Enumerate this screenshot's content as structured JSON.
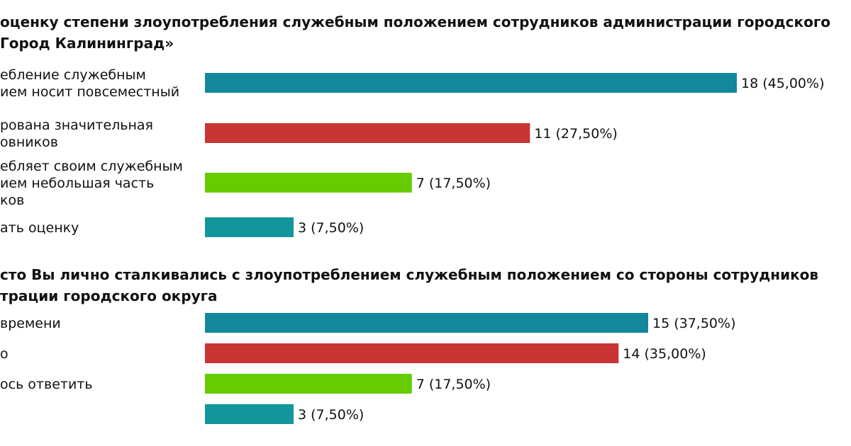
{
  "colors": [
    "#13879b",
    "#c93434",
    "#66cc00",
    "#13969b"
  ],
  "chart_data": [
    {
      "type": "bar",
      "orientation": "horizontal",
      "title_lines": [
        "оценку степени злоупотребления служебным положением сотрудников администрации городского",
        "Город Калининград»"
      ],
      "categories": [
        [
          "ебление служебным",
          "ием носит повсеместный"
        ],
        [
          "рована значительная",
          "овников"
        ],
        [
          "ебляет своим служебным",
          "ием небольшая часть",
          "ков"
        ],
        [
          "ать оценку"
        ]
      ],
      "values": [
        18,
        11,
        7,
        3
      ],
      "percents": [
        45.0,
        27.5,
        17.5,
        7.5
      ],
      "value_labels": [
        "18 (45,00%)",
        "11 (27,50%)",
        "7 (17,50%)",
        "3 (7,50%)"
      ]
    },
    {
      "type": "bar",
      "orientation": "horizontal",
      "title_lines": [
        "сто Вы лично сталкивались с злоупотреблением служебным положением со стороны сотрудников",
        "трации городского округа"
      ],
      "categories": [
        [
          "времени"
        ],
        [
          "о"
        ],
        [
          "ось ответить"
        ],
        [
          ""
        ]
      ],
      "values": [
        15,
        14,
        7,
        3
      ],
      "percents": [
        37.5,
        35.0,
        17.5,
        7.5
      ],
      "value_labels": [
        "15 (37,50%)",
        "14 (35,00%)",
        "7 (17,50%)",
        "3 (7,50%)"
      ]
    }
  ]
}
